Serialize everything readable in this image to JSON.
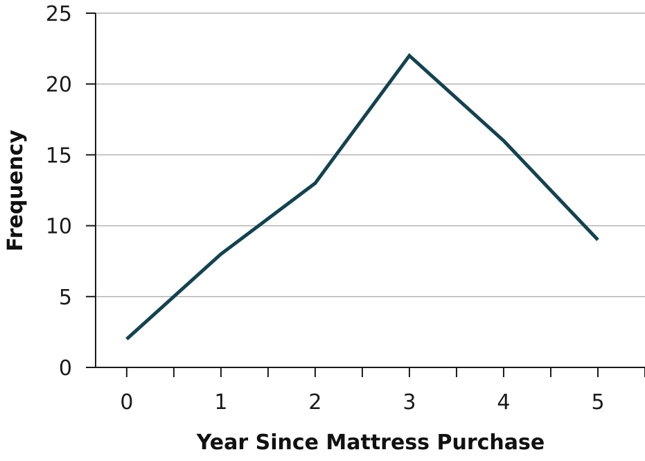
{
  "chart_data": {
    "type": "line",
    "title": "",
    "xlabel": "Year Since Mattress Purchase",
    "ylabel": "Frequency",
    "x": [
      0,
      1,
      2,
      3,
      4,
      5
    ],
    "x_ticks": [
      "0",
      "1",
      "2",
      "3",
      "4",
      "5"
    ],
    "xlim": [
      -0.33,
      5.5
    ],
    "ylim": [
      0,
      25
    ],
    "y_ticks": [
      "0",
      "5",
      "10",
      "15",
      "20",
      "25"
    ],
    "grid": true,
    "series": [
      {
        "values": [
          2,
          8,
          13,
          22,
          16,
          9
        ],
        "color": "#15424e"
      }
    ]
  }
}
